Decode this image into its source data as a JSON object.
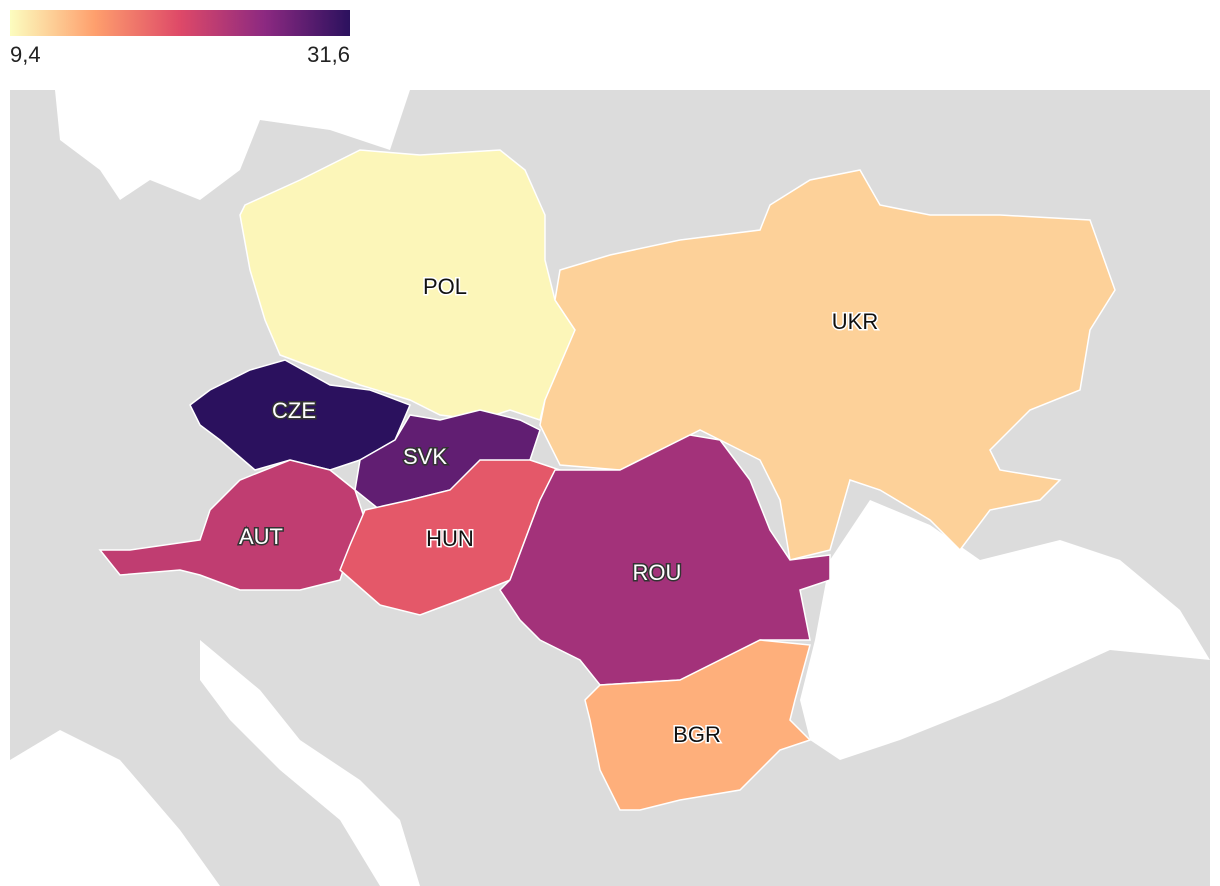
{
  "chart_data": {
    "type": "choropleth",
    "colorscale": [
      "#fcfdbf",
      "#fe9f6d",
      "#de4968",
      "#8c2981",
      "#2b115e"
    ],
    "colorlim": [
      9.4,
      31.6
    ],
    "colorticks": [
      {
        "value": 9.4,
        "label": "9,4"
      },
      {
        "value": 31.6,
        "label": "31,6"
      }
    ],
    "regions": [
      "POL",
      "UKR",
      "CZE",
      "SVK",
      "AUT",
      "HUN",
      "ROU",
      "BGR"
    ],
    "values": [
      9.8,
      12,
      31.6,
      28.5,
      22.5,
      19.5,
      24.5,
      14
    ]
  }
}
